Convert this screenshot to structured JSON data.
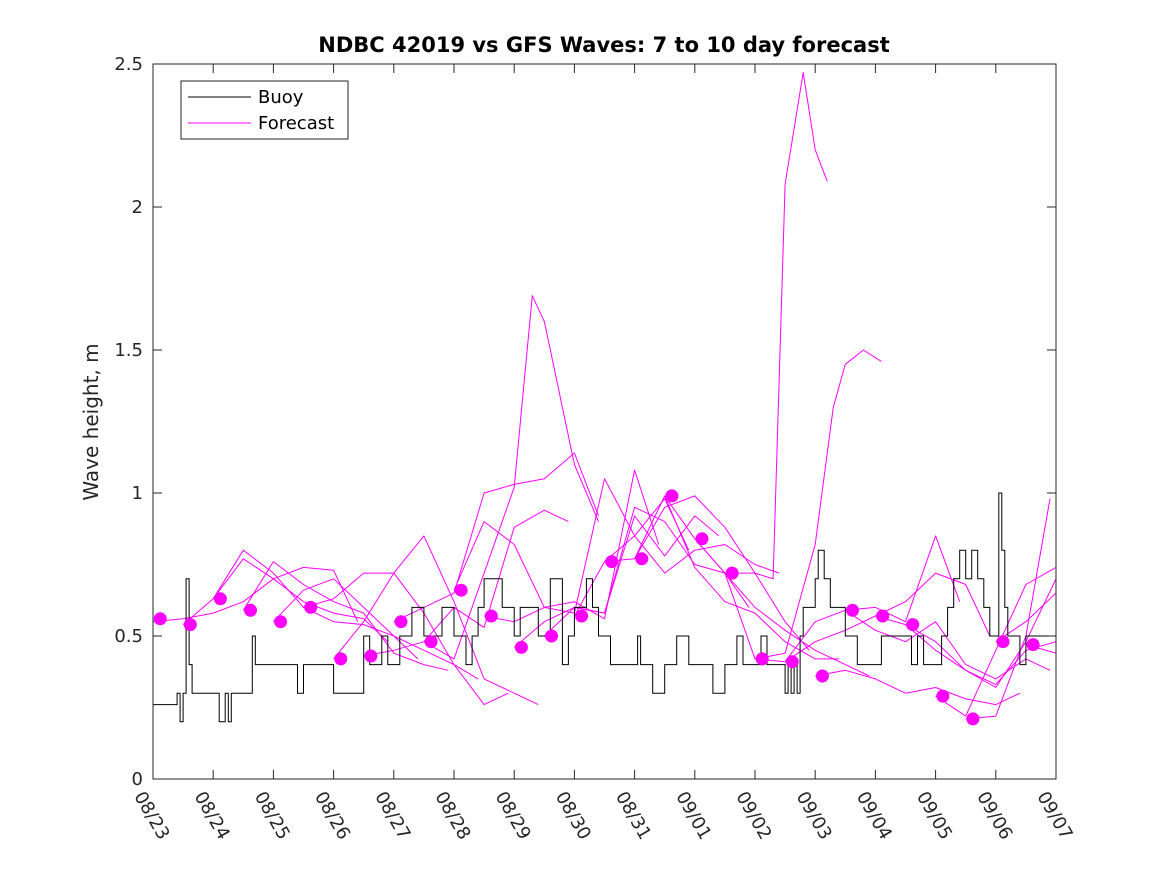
{
  "chart_data": {
    "type": "line",
    "title": "NDBC 42019 vs GFS Waves: 7 to 10 day forecast",
    "xlabel": "",
    "ylabel": "Wave height, m",
    "x_unit": "days since 08/23",
    "xlim": [
      0,
      15
    ],
    "ylim": [
      0,
      2.5
    ],
    "y_ticks": [
      0,
      0.5,
      1,
      1.5,
      2,
      2.5
    ],
    "y_tick_labels": [
      "0",
      "0.5",
      "1",
      "1.5",
      "2",
      "2.5"
    ],
    "x_tick_labels": [
      "08/23",
      "08/24",
      "08/25",
      "08/26",
      "08/27",
      "08/28",
      "08/29",
      "08/30",
      "08/31",
      "09/01",
      "09/02",
      "09/03",
      "09/04",
      "09/05",
      "09/06",
      "09/07"
    ],
    "grid": false,
    "legend": {
      "position": "top-left",
      "entries": [
        {
          "label": "Buoy",
          "color": "#000000"
        },
        {
          "label": "Forecast",
          "color": "#ff00ff"
        }
      ]
    },
    "colors": {
      "buoy": "#000000",
      "forecast": "#ff00ff",
      "axis": "#262626"
    },
    "buoy": {
      "name": "Buoy",
      "x": [
        0,
        0.4,
        0.45,
        0.5,
        0.55,
        0.6,
        0.65,
        0.7,
        0.75,
        0.8,
        1.1,
        1.2,
        1.25,
        1.3,
        1.35,
        1.4,
        1.45,
        1.6,
        1.65,
        1.7,
        1.75,
        1.8,
        1.85,
        1.9,
        2.0,
        2.4,
        2.5,
        2.9,
        3.0,
        3.5,
        3.6,
        3.7,
        3.8,
        3.9,
        4.0,
        4.1,
        4.2,
        4.3,
        4.4,
        4.5,
        4.6,
        4.8,
        4.9,
        5.0,
        5.1,
        5.2,
        5.3,
        5.4,
        5.5,
        5.6,
        5.7,
        5.8,
        5.9,
        6.0,
        6.1,
        6.2,
        6.3,
        6.4,
        6.6,
        6.8,
        6.9,
        7.0,
        7.1,
        7.2,
        7.3,
        7.4,
        7.5,
        7.6,
        7.7,
        7.8,
        7.9,
        8.0,
        8.05,
        8.1,
        8.2,
        8.3,
        8.4,
        8.5,
        8.6,
        8.7,
        8.8,
        8.9,
        9.0,
        9.1,
        9.2,
        9.3,
        9.4,
        9.5,
        9.6,
        9.7,
        9.8,
        9.9,
        10.0,
        10.1,
        10.2,
        10.3,
        10.4,
        10.5,
        10.55,
        10.6,
        10.65,
        10.7,
        10.75,
        10.8,
        10.9,
        11.0,
        11.05,
        11.1,
        11.15,
        11.25,
        11.3,
        11.4,
        11.5,
        11.6,
        11.7,
        11.8,
        11.9,
        12.0,
        12.1,
        12.2,
        12.3,
        12.4,
        12.5,
        12.6,
        12.7,
        12.8,
        12.9,
        13.0,
        13.05,
        13.1,
        13.2,
        13.3,
        13.4,
        13.5,
        13.6,
        13.7,
        13.8,
        13.9,
        14.0,
        14.05,
        14.1,
        14.15,
        14.2,
        14.3,
        14.4,
        14.5,
        14.6,
        14.7,
        14.8,
        14.9,
        15.0
      ],
      "values": [
        0.26,
        0.3,
        0.2,
        0.3,
        0.7,
        0.4,
        0.3,
        0.3,
        0.3,
        0.3,
        0.2,
        0.3,
        0.2,
        0.3,
        0.3,
        0.3,
        0.3,
        0.3,
        0.5,
        0.4,
        0.4,
        0.4,
        0.4,
        0.4,
        0.4,
        0.3,
        0.4,
        0.4,
        0.3,
        0.5,
        0.4,
        0.4,
        0.5,
        0.4,
        0.4,
        0.5,
        0.5,
        0.6,
        0.6,
        0.5,
        0.5,
        0.6,
        0.6,
        0.5,
        0.5,
        0.4,
        0.5,
        0.6,
        0.7,
        0.7,
        0.7,
        0.6,
        0.6,
        0.5,
        0.6,
        0.6,
        0.6,
        0.5,
        0.7,
        0.4,
        0.5,
        0.6,
        0.6,
        0.7,
        0.6,
        0.5,
        0.5,
        0.4,
        0.4,
        0.4,
        0.4,
        0.4,
        0.5,
        0.4,
        0.4,
        0.3,
        0.3,
        0.4,
        0.4,
        0.5,
        0.5,
        0.4,
        0.4,
        0.4,
        0.4,
        0.3,
        0.3,
        0.4,
        0.4,
        0.5,
        0.4,
        0.4,
        0.4,
        0.5,
        0.4,
        0.4,
        0.4,
        0.3,
        0.4,
        0.3,
        0.4,
        0.3,
        0.5,
        0.6,
        0.6,
        0.7,
        0.8,
        0.8,
        0.7,
        0.6,
        0.6,
        0.6,
        0.5,
        0.5,
        0.4,
        0.4,
        0.4,
        0.4,
        0.5,
        0.5,
        0.5,
        0.5,
        0.5,
        0.4,
        0.5,
        0.4,
        0.4,
        0.4,
        0.4,
        0.5,
        0.6,
        0.7,
        0.8,
        0.7,
        0.8,
        0.7,
        0.6,
        0.5,
        0.5,
        1.0,
        0.8,
        0.6,
        0.5,
        0.5,
        0.4,
        0.5,
        0.5,
        0.5,
        0.5,
        0.5,
        0.5
      ]
    },
    "forecast_lines": [
      {
        "name": "Forecast",
        "x": [
          0,
          0.5,
          1,
          1.5,
          2,
          2.5,
          3,
          3.4
        ],
        "values": [
          0.55,
          0.56,
          0.58,
          0.62,
          0.7,
          0.74,
          0.73,
          0.55
        ]
      },
      {
        "name": "Forecast",
        "x": [
          0.5,
          1,
          1.5,
          2,
          2.5,
          3,
          3.5,
          3.9
        ],
        "values": [
          0.54,
          0.63,
          0.77,
          0.7,
          0.62,
          0.58,
          0.56,
          0.48
        ]
      },
      {
        "name": "Forecast",
        "x": [
          1,
          1.5,
          2,
          2.5,
          3,
          3.5,
          4,
          4.4
        ],
        "values": [
          0.63,
          0.8,
          0.72,
          0.6,
          0.55,
          0.54,
          0.5,
          0.42
        ]
      },
      {
        "name": "Forecast",
        "x": [
          1.5,
          2,
          2.5,
          3,
          3.5,
          4,
          4.5,
          4.9
        ],
        "values": [
          0.59,
          0.76,
          0.68,
          0.62,
          0.58,
          0.44,
          0.4,
          0.38
        ]
      },
      {
        "name": "Forecast",
        "x": [
          2,
          2.5,
          3,
          3.5,
          4,
          4.5,
          5,
          5.4
        ],
        "values": [
          0.55,
          0.66,
          0.7,
          0.6,
          0.5,
          0.45,
          0.4,
          0.35
        ]
      },
      {
        "name": "Forecast",
        "x": [
          2.5,
          3,
          3.5,
          4,
          4.5,
          5,
          5.5,
          5.9
        ],
        "values": [
          0.6,
          0.63,
          0.72,
          0.72,
          0.58,
          0.4,
          0.26,
          0.3
        ]
      },
      {
        "name": "Forecast",
        "x": [
          3,
          3.5,
          4,
          4.5,
          5,
          5.5,
          6,
          6.4
        ],
        "values": [
          0.42,
          0.55,
          0.72,
          0.85,
          0.62,
          0.35,
          0.3,
          0.26
        ]
      },
      {
        "name": "Forecast",
        "x": [
          3.5,
          4,
          4.5,
          5,
          5.5,
          6,
          6.5,
          6.9
        ],
        "values": [
          0.43,
          0.45,
          0.48,
          0.6,
          0.53,
          0.88,
          0.94,
          0.9
        ]
      },
      {
        "name": "Forecast",
        "x": [
          4,
          4.5,
          5,
          5.5,
          6,
          6.5,
          7,
          7.4
        ],
        "values": [
          0.55,
          0.6,
          0.65,
          1.0,
          1.03,
          1.05,
          1.14,
          0.92
        ]
      },
      {
        "name": "Forecast",
        "x": [
          4.5,
          5,
          5.5,
          6,
          6.3,
          6.5,
          7,
          7.4
        ],
        "values": [
          0.48,
          0.42,
          0.72,
          1.02,
          1.69,
          1.6,
          1.1,
          0.9
        ]
      },
      {
        "name": "Forecast",
        "x": [
          5,
          5.5,
          6,
          6.5,
          7,
          7.5,
          8,
          8.4
        ],
        "values": [
          0.66,
          0.9,
          0.82,
          0.6,
          0.62,
          0.56,
          1.08,
          0.82
        ]
      },
      {
        "name": "Forecast",
        "x": [
          5.5,
          6,
          6.5,
          7,
          7.5,
          8,
          8.5,
          8.9
        ],
        "values": [
          0.57,
          0.55,
          0.6,
          0.58,
          1.05,
          0.85,
          0.98,
          0.8
        ]
      },
      {
        "name": "Forecast",
        "x": [
          6,
          6.5,
          7,
          7.5,
          8,
          8.5,
          9,
          9.4
        ],
        "values": [
          0.46,
          0.55,
          0.6,
          0.58,
          0.92,
          0.78,
          0.92,
          0.85
        ]
      },
      {
        "name": "Forecast",
        "x": [
          6.5,
          7,
          7.5,
          8,
          8.5,
          9,
          9.5,
          9.9
        ],
        "values": [
          0.5,
          0.6,
          0.58,
          0.95,
          0.9,
          0.75,
          0.72,
          0.6
        ]
      },
      {
        "name": "Forecast",
        "x": [
          7,
          7.5,
          8,
          8.5,
          9,
          9.5,
          10,
          10.4
        ],
        "values": [
          0.57,
          0.76,
          0.85,
          0.72,
          0.8,
          0.82,
          0.75,
          0.72
        ]
      },
      {
        "name": "Forecast",
        "x": [
          7.5,
          8,
          8.5,
          9,
          9.5,
          10,
          10.5,
          10.9
        ],
        "values": [
          0.76,
          0.77,
          0.95,
          0.99,
          0.88,
          0.72,
          0.55,
          0.45
        ]
      },
      {
        "name": "Forecast",
        "x": [
          8,
          8.5,
          9,
          9.5,
          10,
          10.5,
          11,
          11.4
        ],
        "values": [
          0.77,
          0.99,
          0.74,
          0.62,
          0.58,
          0.48,
          0.42,
          0.42
        ]
      },
      {
        "name": "Forecast",
        "x": [
          8.5,
          9,
          9.5,
          10,
          10.5,
          11,
          11.5,
          11.9
        ],
        "values": [
          0.99,
          0.84,
          0.72,
          0.6,
          0.52,
          0.45,
          0.4,
          0.36
        ]
      },
      {
        "name": "Forecast",
        "x": [
          9,
          9.5,
          10,
          10.3,
          10.5,
          10.8,
          11,
          11.2
        ],
        "values": [
          0.84,
          0.72,
          0.72,
          0.7,
          2.08,
          2.47,
          2.2,
          2.09
        ]
      },
      {
        "name": "Forecast",
        "x": [
          9.5,
          10,
          10.5,
          11,
          11.3,
          11.5,
          11.8,
          12.1
        ],
        "values": [
          0.72,
          0.42,
          0.44,
          0.82,
          1.3,
          1.45,
          1.5,
          1.46
        ]
      },
      {
        "name": "Forecast",
        "x": [
          10,
          10.5,
          11,
          11.5,
          12,
          12.5,
          13,
          13.4
        ],
        "values": [
          0.42,
          0.41,
          0.55,
          0.59,
          0.6,
          0.55,
          0.85,
          0.62
        ]
      },
      {
        "name": "Forecast",
        "x": [
          10.5,
          11,
          11.5,
          12,
          12.5,
          13,
          13.5,
          13.9
        ],
        "values": [
          0.41,
          0.48,
          0.52,
          0.57,
          0.62,
          0.72,
          0.68,
          0.5
        ]
      },
      {
        "name": "Forecast",
        "x": [
          11,
          11.5,
          12,
          12.5,
          13,
          13.5,
          14,
          14.4
        ],
        "values": [
          0.36,
          0.38,
          0.35,
          0.3,
          0.32,
          0.28,
          0.26,
          0.3
        ]
      },
      {
        "name": "Forecast",
        "x": [
          11.5,
          12,
          12.5,
          13,
          13.5,
          14,
          14.5,
          14.9
        ],
        "values": [
          0.59,
          0.52,
          0.48,
          0.55,
          0.4,
          0.35,
          0.42,
          0.38
        ]
      },
      {
        "name": "Forecast",
        "x": [
          12,
          12.5,
          13,
          13.5,
          14,
          14.5,
          15
        ],
        "values": [
          0.57,
          0.54,
          0.48,
          0.38,
          0.33,
          0.45,
          0.48
        ]
      },
      {
        "name": "Forecast",
        "x": [
          12.5,
          13,
          13.5,
          14,
          14.5,
          15
        ],
        "values": [
          0.54,
          0.45,
          0.38,
          0.32,
          0.48,
          0.7
        ]
      },
      {
        "name": "Forecast",
        "x": [
          13,
          13.5,
          14,
          14.5,
          15
        ],
        "values": [
          0.29,
          0.22,
          0.45,
          0.68,
          0.74
        ]
      },
      {
        "name": "Forecast",
        "x": [
          13.5,
          14,
          14.5,
          14.9
        ],
        "values": [
          0.21,
          0.22,
          0.5,
          0.98
        ]
      },
      {
        "name": "Forecast",
        "x": [
          14,
          14.5,
          15
        ],
        "values": [
          0.48,
          0.55,
          0.65
        ]
      },
      {
        "name": "Forecast",
        "x": [
          14.5,
          15
        ],
        "values": [
          0.47,
          0.44
        ]
      }
    ],
    "forecast_markers": {
      "x": [
        0.12,
        0.62,
        1.12,
        1.62,
        2.12,
        2.62,
        3.12,
        3.62,
        4.12,
        4.62,
        5.12,
        5.62,
        6.12,
        6.62,
        7.12,
        7.62,
        8.12,
        8.62,
        9.12,
        9.62,
        10.12,
        10.62,
        11.12,
        11.62,
        12.12,
        12.62,
        13.12,
        13.62,
        14.12,
        14.62
      ],
      "values": [
        0.56,
        0.54,
        0.63,
        0.59,
        0.55,
        0.6,
        0.42,
        0.43,
        0.55,
        0.48,
        0.66,
        0.57,
        0.46,
        0.5,
        0.57,
        0.76,
        0.77,
        0.99,
        0.84,
        0.72,
        0.42,
        0.41,
        0.36,
        0.59,
        0.57,
        0.54,
        0.29,
        0.21,
        0.48,
        0.47
      ]
    }
  }
}
